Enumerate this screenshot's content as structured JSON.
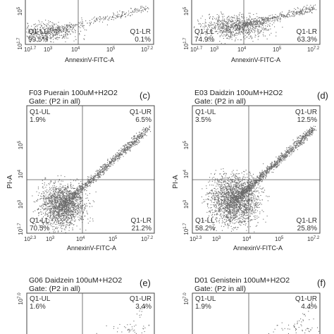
{
  "chart_data": [
    {
      "type": "scatter",
      "panel_letter": "",
      "title": "",
      "gate": "",
      "xlabel": "AnnexinV-FITC-A",
      "ylabel": "",
      "x_ticks": [
        "10^1.7",
        "10^3",
        "10^4",
        "10^5",
        "10^7.2"
      ],
      "y_ticks": [
        "10^5",
        "10^1.7"
      ],
      "quadrants": {
        "UL": "",
        "UR": "",
        "LL": "Q1-LL",
        "LR": "Q1-LR"
      },
      "values": {
        "LL": "99.5%",
        "LR": "0.1%"
      }
    },
    {
      "type": "scatter",
      "panel_letter": "",
      "title": "",
      "gate": "",
      "xlabel": "AnnexinV-FITC-A",
      "ylabel": "",
      "x_ticks": [
        "10^1.7",
        "10^3",
        "10^4",
        "10^5",
        "10^7.2"
      ],
      "y_ticks": [
        "10^5",
        "10^1.7"
      ],
      "quadrants": {
        "UL": "",
        "UR": "",
        "LL": "Q1-LL",
        "LR": "Q1-LR"
      },
      "values": {
        "LL": "74.9%",
        "LR": "63.3%"
      }
    },
    {
      "type": "scatter",
      "panel_letter": "(c)",
      "title": "F03 Puerain 100uM+H2O2",
      "gate": "Gate: (P2 in all)",
      "xlabel": "AnnexinV-FITC-A",
      "ylabel": "PI-A",
      "x_ticks": [
        "10^2.3",
        "10^3",
        "10^4",
        "10^5",
        "10^7.2"
      ],
      "y_ticks": [
        "10^5",
        "10^4",
        "10^3",
        "10^1.7"
      ],
      "quadrants": {
        "UL": "Q1-UL",
        "UR": "Q1-UR",
        "LL": "Q1-LL",
        "LR": "Q1-LR"
      },
      "values": {
        "UL": "1.9%",
        "UR": "6.5%",
        "LL": "70.5%",
        "LR": "21.2%"
      }
    },
    {
      "type": "scatter",
      "panel_letter": "(d)",
      "title": "E03 Daidzin 100uM+H2O2",
      "gate": "Gate: (P2 in all)",
      "xlabel": "AnnexinV-FITC-A",
      "ylabel": "PI-A",
      "x_ticks": [
        "10^2.3",
        "10^3",
        "10^4",
        "10^5",
        "10^7.2"
      ],
      "y_ticks": [
        "10^5",
        "10^4",
        "10^3",
        "10^1.7"
      ],
      "quadrants": {
        "UL": "Q1-UL",
        "UR": "Q1-UR",
        "LL": "Q1-LL",
        "LR": "Q1-LR"
      },
      "values": {
        "UL": "3.5%",
        "UR": "12.5%",
        "LL": "58.2%",
        "LR": "25.8%"
      }
    },
    {
      "type": "scatter",
      "panel_letter": "(e)",
      "title": "G06 Daidzein 100uM+H2O2",
      "gate": "Gate: (P2 in all)",
      "xlabel": "",
      "ylabel": "",
      "x_ticks": [],
      "y_ticks": [
        "10^7.0"
      ],
      "quadrants": {
        "UL": "Q1-UL",
        "UR": "Q1-UR",
        "LL": "",
        "LR": ""
      },
      "values": {
        "UL": "1.6%",
        "UR": "3.4%"
      }
    },
    {
      "type": "scatter",
      "panel_letter": "(f)",
      "title": "D01 Genistein 100uM+H2O2",
      "gate": "Gate: (P2 in all)",
      "xlabel": "",
      "ylabel": "",
      "x_ticks": [],
      "y_ticks": [
        "10^7.0"
      ],
      "quadrants": {
        "UL": "Q1-UL",
        "UR": "Q1-UR",
        "LL": "",
        "LR": ""
      },
      "values": {
        "UL": "1.9%",
        "UR": "4.4%"
      }
    }
  ]
}
